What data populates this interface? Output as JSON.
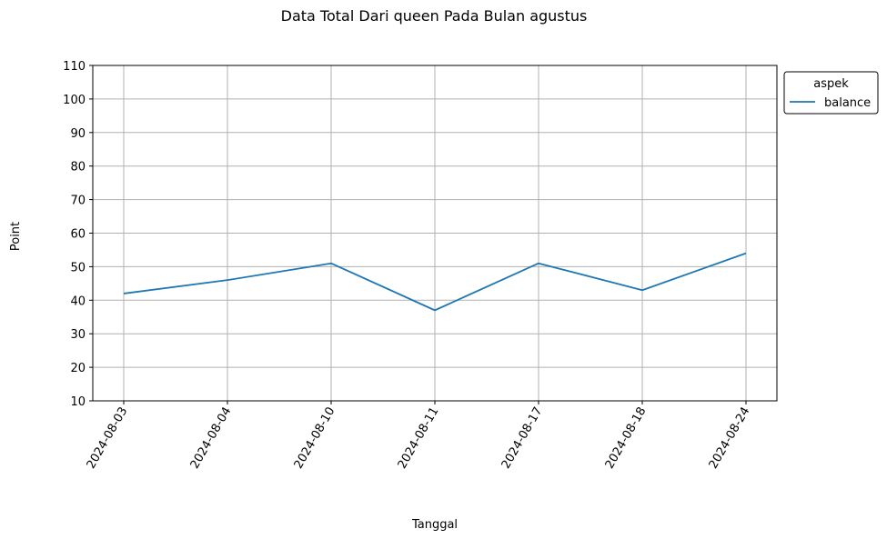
{
  "chart_data": {
    "type": "line",
    "title": "Data Total Dari queen Pada Bulan agustus",
    "xlabel": "Tanggal",
    "ylabel": "Point",
    "categories": [
      "2024-08-03",
      "2024-08-04",
      "2024-08-10",
      "2024-08-11",
      "2024-08-17",
      "2024-08-18",
      "2024-08-24"
    ],
    "series": [
      {
        "name": "balance",
        "values": [
          42,
          46,
          51,
          37,
          51,
          43,
          54
        ],
        "color": "#1f77b4"
      }
    ],
    "ylim": [
      10,
      110
    ],
    "yticks": [
      10,
      20,
      30,
      40,
      50,
      60,
      70,
      80,
      90,
      100,
      110
    ],
    "grid": true,
    "legend": {
      "title": "aspek",
      "placement": "outside-top-right"
    }
  }
}
